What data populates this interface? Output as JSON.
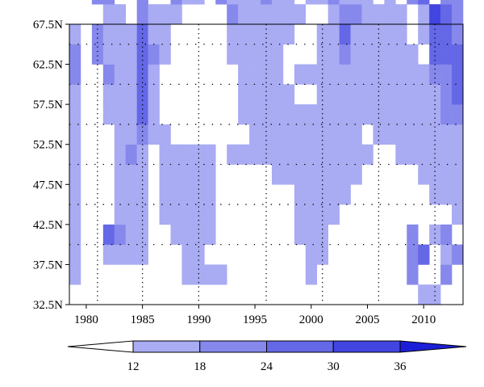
{
  "chart_data": {
    "type": "heatmap",
    "title": "",
    "xlabel": "",
    "ylabel": "",
    "x_tick_labels": [
      "1980",
      "1985",
      "1990",
      "1995",
      "2000",
      "2005",
      "2010"
    ],
    "x_ticks": [
      1980,
      1985,
      1990,
      1995,
      2000,
      2005,
      2010
    ],
    "y_tick_labels": [
      "32.5N",
      "37.5N",
      "42.5N",
      "47.5N",
      "52.5N",
      "57.5N",
      "62.5N",
      "67.5N"
    ],
    "y_ticks": [
      32.5,
      37.5,
      42.5,
      47.5,
      52.5,
      57.5,
      62.5,
      67.5
    ],
    "xlim": [
      1978.5,
      2013.5
    ],
    "ylim": [
      32.5,
      67.5
    ],
    "grid": "dotted",
    "colorbar": {
      "orientation": "horizontal",
      "position": "bottom",
      "levels": [
        12,
        18,
        24,
        30,
        36
      ],
      "level_labels": [
        "12",
        "18",
        "24",
        "30",
        "36"
      ],
      "colors": [
        "#ffffff",
        "#a9abf3",
        "#8688ec",
        "#6467e6",
        "#4245e0",
        "#1c1fd8"
      ]
    },
    "year_start": 1979,
    "lat_start": 32.5,
    "grid_step_deg": 2.5,
    "rows": [
      "...............................00..",
      "0.........0000.......0........1..1.",
      "0..0000...00.........00.......12.01",
      "0..2100..0000.......000.......1.01.",
      "0...000.00000.......0000..........0",
      "0...000.00000.......00000.......000",
      "0...000.00000.....00000000.....0000",
      "0...010.00000.0000000000000..000000",
      "0...00100.......0000000000.00000000",
      "0..00020.......00000000000000000011",
      "0..00020.......00000..0000000000012",
      "1..10020.......0000.000000000000112",
      "1.1000210.....00000...001000000.222",
      "0.1000200.....000000..00200000.0221",
      "...00.1000....1000000..0110000.0321",
      "..11..1..100.1000100.001000.0.12.11"
    ],
    "dot_columns": [
      1981,
      1985,
      1990,
      1996,
      2001,
      2006,
      2011
    ],
    "dot_rows": [
      40.0,
      45.0,
      50.0,
      55.0,
      60.0,
      65.0
    ]
  }
}
